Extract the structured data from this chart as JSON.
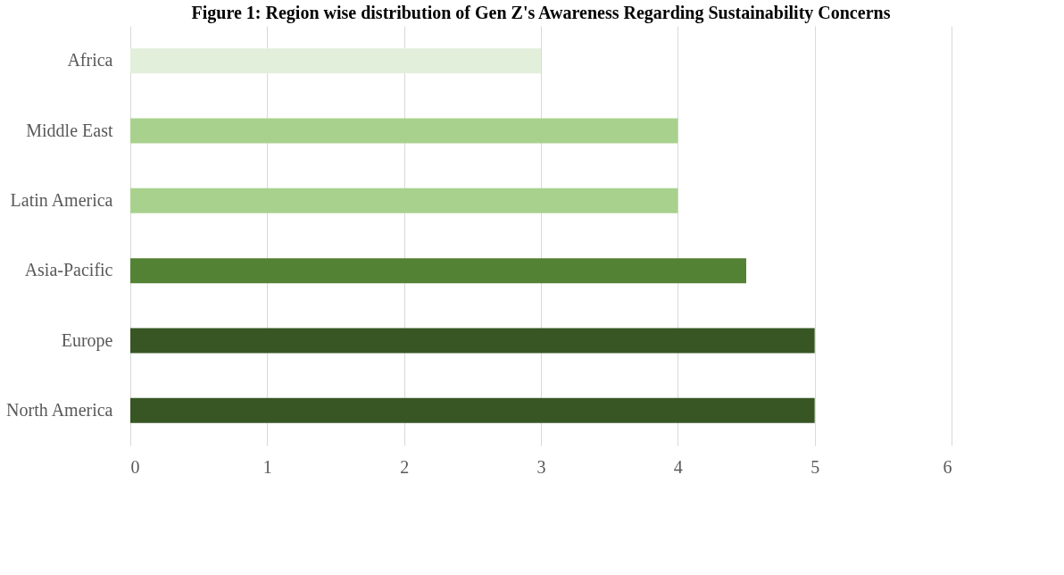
{
  "chart_data": {
    "type": "bar",
    "orientation": "horizontal",
    "title": "Figure 1: Region wise distribution of Gen Z's Awareness Regarding Sustainability Concerns",
    "categories": [
      "Africa",
      "Middle East",
      "Latin America",
      "Asia-Pacific",
      "Europe",
      "North America"
    ],
    "values": [
      3,
      4,
      4,
      4.5,
      5,
      5
    ],
    "colors": [
      "#e2efda",
      "#a9d18e",
      "#a9d18e",
      "#548235",
      "#375623",
      "#375623"
    ],
    "xlim": [
      0,
      6
    ],
    "xticks": [
      0,
      1,
      2,
      3,
      4,
      5,
      6
    ],
    "grid": "x"
  }
}
